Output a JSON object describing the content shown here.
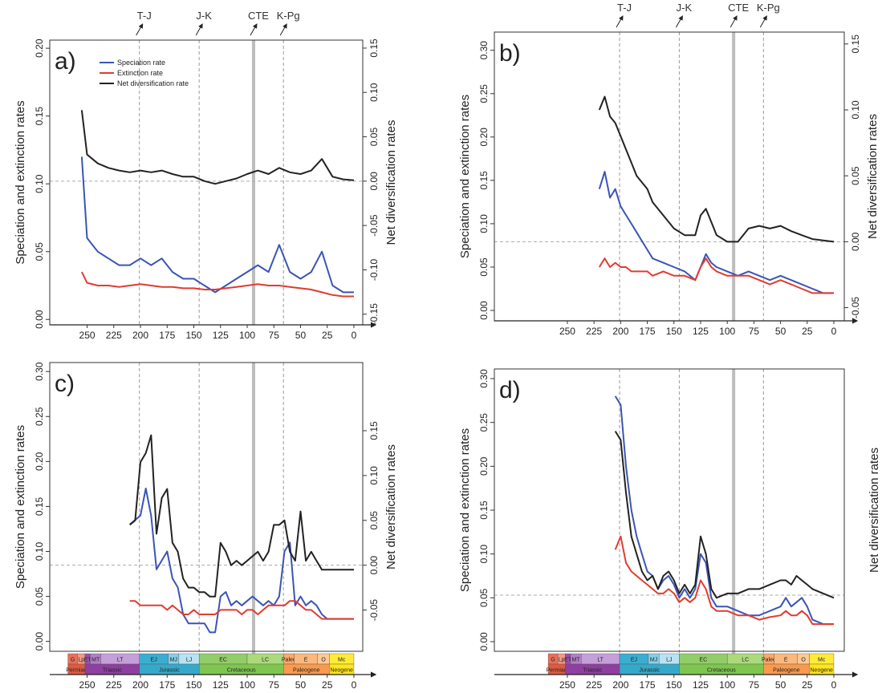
{
  "chart_data": [
    {
      "type": "line",
      "label": "a)",
      "ylabel": "Speciation and extinction rates",
      "y2label": "Net diversification rates",
      "xlim": [
        285,
        -8.3
      ],
      "xticks": [
        250,
        225,
        200,
        175,
        150,
        125,
        100,
        75,
        50,
        25,
        0
      ],
      "ylim": [
        -0.004,
        0.206
      ],
      "yticks": [
        {
          "value": 0,
          "label": "0.00"
        },
        0.05,
        {
          "value": 0.1,
          "label": "0.10"
        },
        0.15,
        {
          "value": 0.2,
          "label": "0.20"
        }
      ],
      "y2lim": [
        -0.162,
        0.159
      ],
      "y2ticks": [
        -0.15,
        {
          "value": -0.1,
          "label": "-0.10"
        },
        -0.05,
        {
          "value": 0,
          "label": "0.00"
        },
        0.05,
        {
          "value": 0.1,
          "label": "0.10"
        },
        0.15
      ],
      "hline": {
        "value": 0,
        "axis": "y2"
      },
      "event_labels": true,
      "legend": true,
      "timescale": false,
      "x": [
        255,
        250,
        240,
        230,
        220,
        210,
        200,
        190,
        180,
        170,
        160,
        150,
        140,
        130,
        120,
        110,
        100,
        90,
        80,
        70,
        60,
        50,
        40,
        30,
        20,
        10,
        0
      ],
      "series": [
        {
          "name": "Speciation rate",
          "color": "#3a55b4",
          "axis": "y",
          "values": [
            0.12,
            0.06,
            0.05,
            0.045,
            0.04,
            0.04,
            0.045,
            0.04,
            0.045,
            0.035,
            0.03,
            0.03,
            0.025,
            0.02,
            0.025,
            0.03,
            0.035,
            0.04,
            0.035,
            0.055,
            0.035,
            0.03,
            0.035,
            0.05,
            0.025,
            0.02,
            0.02
          ]
        },
        {
          "name": "Extinction rate",
          "color": "#e03c31",
          "axis": "y",
          "values": [
            0.035,
            0.027,
            0.025,
            0.025,
            0.024,
            0.025,
            0.026,
            0.025,
            0.024,
            0.024,
            0.023,
            0.023,
            0.022,
            0.022,
            0.023,
            0.024,
            0.025,
            0.026,
            0.025,
            0.025,
            0.024,
            0.023,
            0.022,
            0.02,
            0.018,
            0.017,
            0.017
          ]
        },
        {
          "name": "Net diversification rate",
          "color": "#222222",
          "axis": "y2",
          "values": [
            0.08,
            0.03,
            0.02,
            0.015,
            0.012,
            0.01,
            0.012,
            0.01,
            0.012,
            0.008,
            0.005,
            0.005,
            0,
            -0.003,
            0,
            0.003,
            0.008,
            0.012,
            0.008,
            0.015,
            0.01,
            0.008,
            0.012,
            0.025,
            0.005,
            0.002,
            0.001
          ]
        }
      ]
    },
    {
      "type": "line",
      "label": "b)",
      "ylabel": "Speciation and extinction rates",
      "y2label": "Net diversification rates",
      "xlim": [
        318.5,
        -9.8
      ],
      "xticks": [
        250,
        225,
        200,
        175,
        150,
        125,
        100,
        75,
        50,
        25,
        0
      ],
      "ylim": [
        -0.012,
        0.321
      ],
      "yticks": [
        {
          "value": 0,
          "label": "0.00"
        },
        0.05,
        {
          "value": 0.1,
          "label": "0.10"
        },
        0.15,
        {
          "value": 0.2,
          "label": "0.20"
        },
        0.25,
        {
          "value": 0.3,
          "label": "0.30"
        }
      ],
      "y2lim": [
        -0.06,
        0.159
      ],
      "y2ticks": [
        -0.05,
        {
          "value": 0,
          "label": "0.00"
        },
        0.05,
        {
          "value": 0.1,
          "label": "0.10"
        },
        0.15
      ],
      "hline": {
        "value": 0,
        "axis": "y2"
      },
      "event_labels": true,
      "legend": false,
      "timescale": false,
      "x": [
        220,
        215,
        210,
        205,
        200,
        195,
        190,
        185,
        180,
        175,
        170,
        160,
        150,
        140,
        130,
        125,
        120,
        115,
        110,
        100,
        90,
        80,
        70,
        60,
        50,
        40,
        30,
        20,
        10,
        0
      ],
      "series": [
        {
          "color": "#3a55b4",
          "axis": "y",
          "values": [
            0.14,
            0.16,
            0.13,
            0.14,
            0.12,
            0.11,
            0.1,
            0.09,
            0.08,
            0.07,
            0.06,
            0.055,
            0.05,
            0.045,
            0.035,
            0.05,
            0.065,
            0.055,
            0.05,
            0.045,
            0.04,
            0.045,
            0.04,
            0.035,
            0.04,
            0.035,
            0.03,
            0.025,
            0.02,
            0.02
          ]
        },
        {
          "color": "#e03c31",
          "axis": "y",
          "values": [
            0.05,
            0.06,
            0.05,
            0.055,
            0.05,
            0.05,
            0.045,
            0.045,
            0.045,
            0.045,
            0.04,
            0.045,
            0.04,
            0.04,
            0.035,
            0.05,
            0.06,
            0.05,
            0.045,
            0.04,
            0.04,
            0.04,
            0.035,
            0.03,
            0.035,
            0.03,
            0.025,
            0.02,
            0.02,
            0.02
          ]
        },
        {
          "color": "#222222",
          "axis": "y2",
          "values": [
            0.1,
            0.11,
            0.095,
            0.09,
            0.08,
            0.07,
            0.06,
            0.05,
            0.045,
            0.04,
            0.03,
            0.02,
            0.01,
            0.005,
            0.005,
            0.02,
            0.025,
            0.015,
            0.005,
            0,
            0,
            0.01,
            0.012,
            0.01,
            0.012,
            0.008,
            0.005,
            0.002,
            0.001,
            0
          ]
        }
      ]
    },
    {
      "type": "line",
      "label": "c)",
      "ylabel": "Speciation and extinction rates",
      "y2label": "Net diversification rates",
      "xlim": [
        285,
        -8.3
      ],
      "xticks": [
        250,
        225,
        200,
        175,
        150,
        125,
        100,
        75,
        50,
        25,
        0
      ],
      "ylim": [
        -0.011,
        0.31
      ],
      "yticks": [
        {
          "value": 0,
          "label": "0.00"
        },
        0.05,
        {
          "value": 0.1,
          "label": "0.10"
        },
        0.15,
        {
          "value": 0.2,
          "label": "0.20"
        },
        0.25,
        {
          "value": 0.3,
          "label": "0.30"
        }
      ],
      "y2lim": [
        -0.096,
        0.226
      ],
      "y2ticks": [
        -0.05,
        {
          "value": 0,
          "label": "0.00"
        },
        0.05,
        {
          "value": 0.1,
          "label": "0.10"
        },
        0.15
      ],
      "hline": {
        "value": 0,
        "axis": "y2"
      },
      "event_labels": false,
      "legend": false,
      "timescale": true,
      "x": [
        210,
        205,
        200,
        195,
        190,
        185,
        180,
        175,
        170,
        165,
        160,
        155,
        150,
        145,
        140,
        135,
        130,
        125,
        120,
        115,
        110,
        105,
        100,
        95,
        90,
        85,
        80,
        75,
        70,
        65,
        60,
        55,
        50,
        45,
        40,
        35,
        30,
        25,
        20,
        10,
        0
      ],
      "series": [
        {
          "color": "#3a55b4",
          "axis": "y",
          "values": [
            0.13,
            0.135,
            0.14,
            0.17,
            0.14,
            0.08,
            0.09,
            0.1,
            0.07,
            0.06,
            0.03,
            0.02,
            0.02,
            0.02,
            0.02,
            0.01,
            0.01,
            0.05,
            0.055,
            0.04,
            0.045,
            0.04,
            0.045,
            0.05,
            0.045,
            0.04,
            0.045,
            0.04,
            0.05,
            0.1,
            0.11,
            0.04,
            0.05,
            0.04,
            0.045,
            0.04,
            0.03,
            0.025,
            0.025,
            0.025,
            0.025
          ]
        },
        {
          "color": "#e03c31",
          "axis": "y",
          "values": [
            0.045,
            0.045,
            0.04,
            0.04,
            0.04,
            0.04,
            0.04,
            0.035,
            0.04,
            0.035,
            0.03,
            0.03,
            0.035,
            0.03,
            0.03,
            0.03,
            0.03,
            0.035,
            0.035,
            0.035,
            0.035,
            0.03,
            0.035,
            0.035,
            0.03,
            0.035,
            0.04,
            0.04,
            0.04,
            0.04,
            0.045,
            0.045,
            0.04,
            0.035,
            0.035,
            0.03,
            0.025,
            0.025,
            0.025,
            0.025,
            0.025
          ]
        },
        {
          "color": "#222222",
          "axis": "y2",
          "values": [
            0.045,
            0.05,
            0.115,
            0.125,
            0.145,
            0.035,
            0.075,
            0.085,
            0.025,
            0.015,
            -0.015,
            -0.025,
            -0.025,
            -0.03,
            -0.03,
            -0.035,
            -0.035,
            0.025,
            0.015,
            0,
            0.005,
            0,
            0.005,
            0.01,
            0.015,
            0.005,
            0.015,
            0.045,
            0.045,
            0.05,
            0.015,
            0.005,
            0.06,
            0.005,
            0.015,
            0.005,
            -0.005,
            -0.005,
            -0.005,
            -0.005,
            -0.005
          ]
        }
      ]
    },
    {
      "type": "line",
      "label": "d)",
      "ylabel": "Speciation and extinction rates",
      "y2label": "Net diversification rates",
      "xlim": [
        318.5,
        -9.8
      ],
      "xticks": [
        250,
        225,
        200,
        175,
        150,
        125,
        100,
        75,
        50,
        25,
        0
      ],
      "ylim": [
        -0.011,
        0.311
      ],
      "yticks": [
        {
          "value": 0,
          "label": "0.00"
        },
        0.05,
        {
          "value": 0.1,
          "label": "0.10"
        },
        0.15,
        {
          "value": 0.2,
          "label": "0.20"
        },
        0.25,
        {
          "value": 0.3,
          "label": "0.30"
        }
      ],
      "hline": {
        "value": 0.053,
        "axis": "y"
      },
      "event_labels": false,
      "legend": false,
      "timescale": true,
      "x": [
        205,
        200,
        195,
        190,
        185,
        180,
        175,
        170,
        165,
        160,
        155,
        150,
        145,
        140,
        135,
        130,
        125,
        120,
        115,
        110,
        100,
        90,
        80,
        70,
        60,
        50,
        45,
        40,
        35,
        30,
        25,
        20,
        10,
        0
      ],
      "series": [
        {
          "color": "#3a55b4",
          "axis": "y",
          "values": [
            0.28,
            0.27,
            0.2,
            0.15,
            0.12,
            0.1,
            0.08,
            0.075,
            0.06,
            0.07,
            0.075,
            0.065,
            0.05,
            0.06,
            0.05,
            0.06,
            0.1,
            0.09,
            0.05,
            0.04,
            0.04,
            0.035,
            0.03,
            0.03,
            0.035,
            0.04,
            0.05,
            0.04,
            0.045,
            0.05,
            0.04,
            0.025,
            0.02,
            0.02
          ]
        },
        {
          "color": "#e03c31",
          "axis": "y",
          "values": [
            0.105,
            0.12,
            0.09,
            0.08,
            0.075,
            0.07,
            0.065,
            0.06,
            0.055,
            0.055,
            0.06,
            0.055,
            0.045,
            0.05,
            0.045,
            0.05,
            0.07,
            0.06,
            0.04,
            0.035,
            0.035,
            0.03,
            0.03,
            0.025,
            0.028,
            0.03,
            0.035,
            0.03,
            0.03,
            0.035,
            0.03,
            0.02,
            0.02,
            0.02
          ]
        },
        {
          "color": "#222222",
          "axis": "y",
          "values": [
            0.24,
            0.23,
            0.17,
            0.12,
            0.1,
            0.08,
            0.07,
            0.075,
            0.06,
            0.075,
            0.08,
            0.07,
            0.055,
            0.065,
            0.055,
            0.065,
            0.12,
            0.1,
            0.06,
            0.05,
            0.055,
            0.055,
            0.06,
            0.06,
            0.065,
            0.07,
            0.07,
            0.065,
            0.075,
            0.07,
            0.065,
            0.06,
            0.055,
            0.05
          ]
        }
      ]
    }
  ],
  "events": [
    {
      "label": "T-J",
      "value": 201,
      "highlight": false
    },
    {
      "label": "J-K",
      "value": 145,
      "highlight": false
    },
    {
      "label": "CTE",
      "value": 94,
      "highlight": true
    },
    {
      "label": "K-Pg",
      "value": 66,
      "highlight": false
    }
  ],
  "timescale": {
    "epochs": [
      {
        "label": "G",
        "start": 268,
        "end": 259,
        "color": "#e8705a"
      },
      {
        "label": "Lp",
        "start": 259,
        "end": 252,
        "color": "#f29a86"
      },
      {
        "label": "ET",
        "start": 252,
        "end": 247,
        "color": "#9b4fb0"
      },
      {
        "label": "MT",
        "start": 247,
        "end": 237,
        "color": "#b27fc8"
      },
      {
        "label": "LT",
        "start": 237,
        "end": 201,
        "color": "#c59fd8"
      },
      {
        "label": "EJ",
        "start": 201,
        "end": 174,
        "color": "#3aaed0"
      },
      {
        "label": "MJ",
        "start": 174,
        "end": 164,
        "color": "#86cfe8"
      },
      {
        "label": "LJ",
        "start": 164,
        "end": 145,
        "color": "#b8e3f2"
      },
      {
        "label": "EC",
        "start": 145,
        "end": 100,
        "color": "#92cd6a"
      },
      {
        "label": "LC",
        "start": 100,
        "end": 66,
        "color": "#acd97c"
      },
      {
        "label": "Paleo",
        "start": 66,
        "end": 56,
        "color": "#fba96a"
      },
      {
        "label": "E",
        "start": 56,
        "end": 34,
        "color": "#fbb97e"
      },
      {
        "label": "O",
        "start": 34,
        "end": 23,
        "color": "#fdca93"
      },
      {
        "label": "Mc",
        "start": 23,
        "end": 0,
        "color": "#ffec3a"
      }
    ],
    "periods": [
      {
        "label": "Permian",
        "start": 268,
        "end": 252,
        "color": "#e05a40"
      },
      {
        "label": "Triassic",
        "start": 252,
        "end": 201,
        "color": "#8e3fa0"
      },
      {
        "label": "Jurassic",
        "start": 201,
        "end": 145,
        "color": "#35a9c9"
      },
      {
        "label": "Cretaceous",
        "start": 145,
        "end": 66,
        "color": "#7fc64e"
      },
      {
        "label": "Paleogene",
        "start": 66,
        "end": 23,
        "color": "#fa9a4f"
      },
      {
        "label": "Neogene",
        "start": 23,
        "end": 0,
        "color": "#ffe619"
      }
    ]
  }
}
